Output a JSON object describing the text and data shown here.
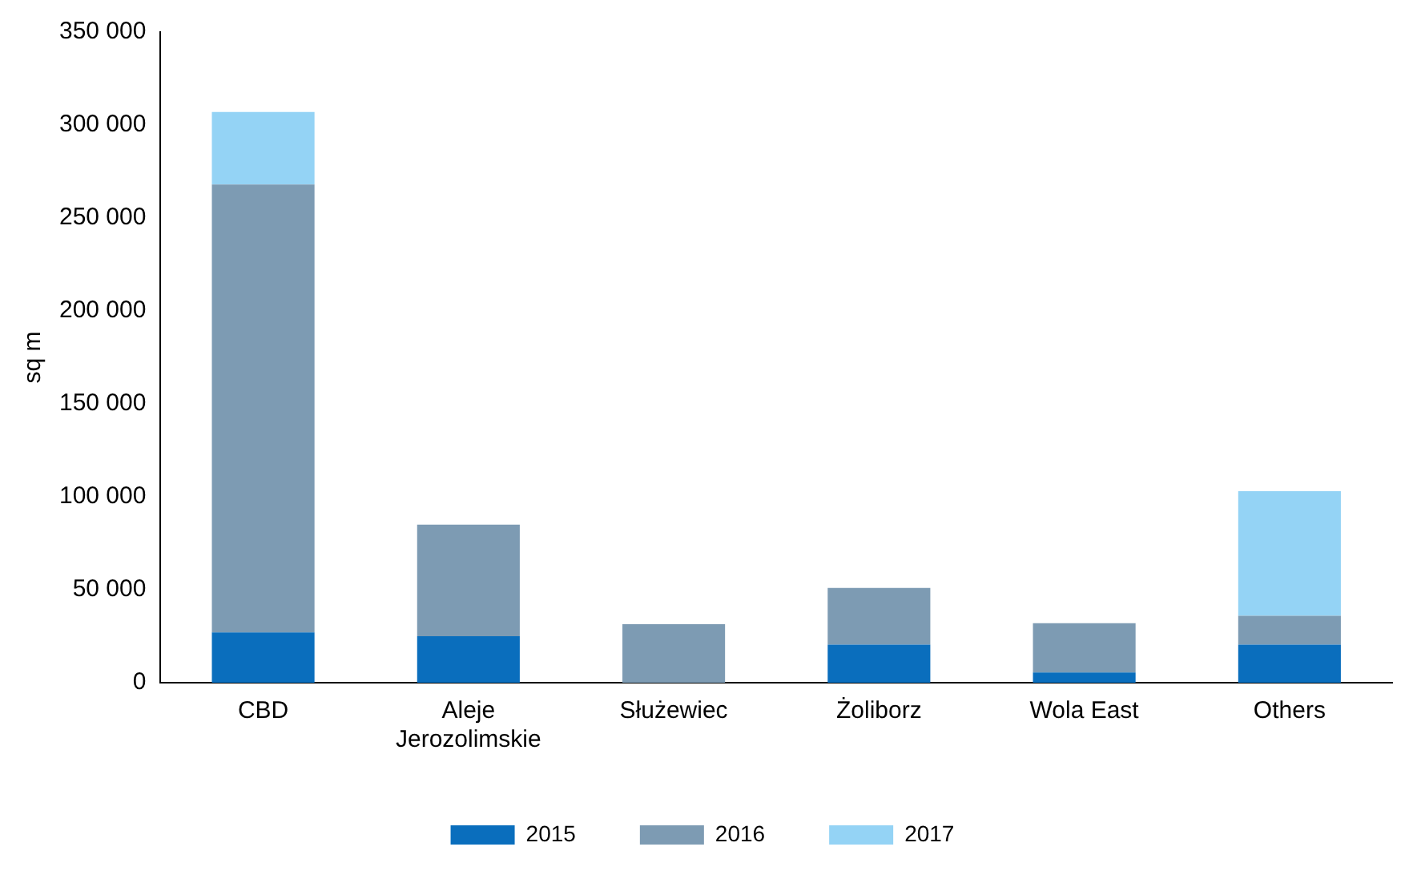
{
  "chart_data": {
    "type": "bar",
    "stacked": true,
    "ylabel": "sq m",
    "categories": [
      "CBD",
      "Aleje Jerozolimskie",
      "Służewiec",
      "Żoliborz",
      "Wola East",
      "Others"
    ],
    "series": [
      {
        "name": "2015",
        "color": "#0a6ebd",
        "values": [
          27000,
          25000,
          0,
          20500,
          5500,
          20500
        ]
      },
      {
        "name": "2016",
        "color": "#7d9bb3",
        "values": [
          241000,
          60000,
          31500,
          30500,
          26500,
          15500
        ]
      },
      {
        "name": "2017",
        "color": "#94d3f5",
        "values": [
          39000,
          null,
          null,
          null,
          null,
          67000
        ]
      }
    ],
    "ylim": [
      0,
      350000
    ],
    "yticks": [
      0,
      {
        "value": 50000,
        "label": "50 000"
      },
      {
        "value": 100000,
        "label": "100 000"
      },
      {
        "value": 150000,
        "label": "150 000"
      },
      {
        "value": 200000,
        "label": "200 000"
      },
      {
        "value": 250000,
        "label": "250 000"
      },
      {
        "value": 300000,
        "label": "300 000"
      },
      {
        "value": 350000,
        "label": "350 000"
      }
    ],
    "grid": false,
    "legend": "bottom"
  }
}
